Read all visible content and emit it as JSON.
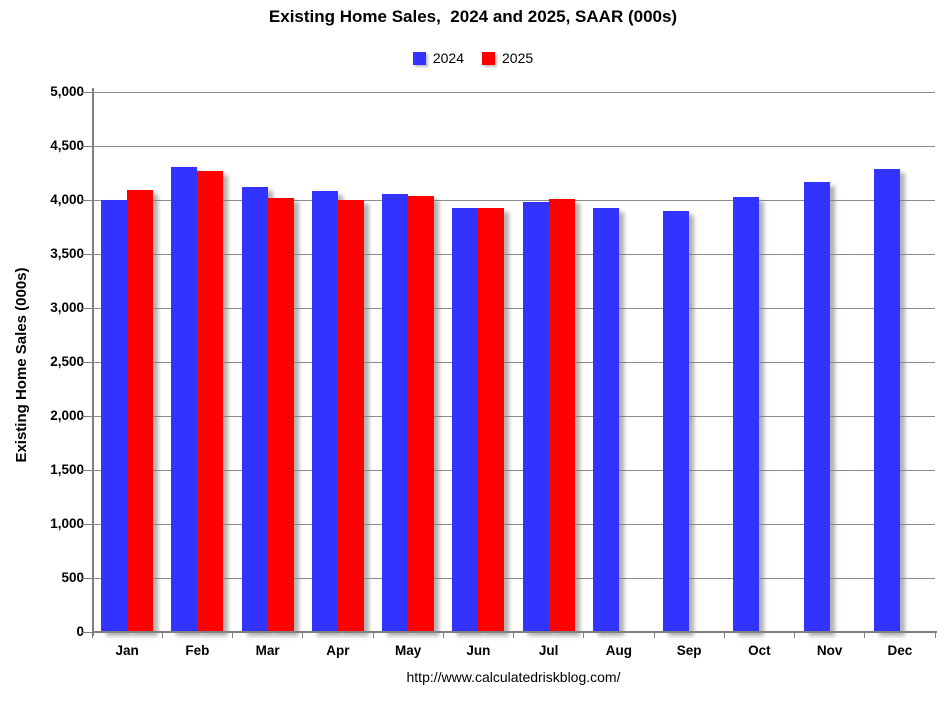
{
  "title": "Existing Home Sales,  2024 and 2025, SAAR (000s)",
  "footer_url": "http://www.calculatedriskblog.com/",
  "legend": [
    {
      "label": "2024",
      "color": "#3333FF"
    },
    {
      "label": "2025",
      "color": "#FF0000"
    }
  ],
  "colors": {
    "series_2024": "#3333FF",
    "series_2025": "#FF0000",
    "gridline": "#8c8c8c",
    "axis": "#808080"
  },
  "chart_data": {
    "type": "bar",
    "title": "Existing Home Sales,  2024 and 2025, SAAR (000s)",
    "categories": [
      "Jan",
      "Feb",
      "Mar",
      "Apr",
      "May",
      "Jun",
      "Jul",
      "Aug",
      "Sep",
      "Oct",
      "Nov",
      "Dec"
    ],
    "series": [
      {
        "name": "2024",
        "color": "#3333FF",
        "values": [
          4000,
          4310,
          4120,
          4080,
          4060,
          3930,
          3980,
          3930,
          3900,
          4030,
          4170,
          4290
        ]
      },
      {
        "name": "2025",
        "color": "#FF0000",
        "values": [
          4090,
          4270,
          4020,
          4000,
          4040,
          3930,
          4010,
          null,
          null,
          null,
          null,
          null
        ]
      }
    ],
    "xlabel": "",
    "ylabel": "Existing Home Sales (000s)",
    "ylim": [
      0,
      5000
    ],
    "ytick_step": 500,
    "grid": true,
    "legend_position": "top"
  }
}
